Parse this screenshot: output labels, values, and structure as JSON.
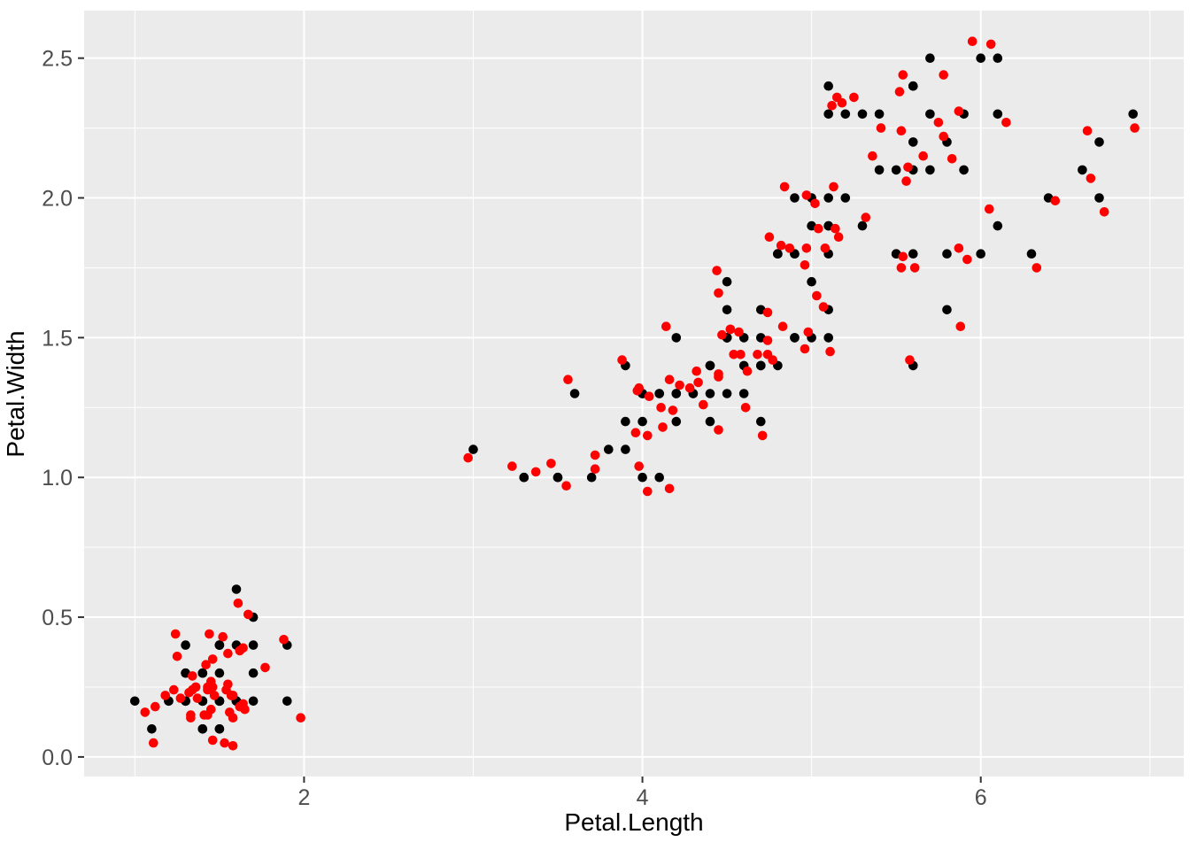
{
  "chart_data": {
    "type": "scatter",
    "title": "",
    "xlabel": "Petal.Length",
    "ylabel": "Petal.Width",
    "xlim": [
      0.7,
      7.2
    ],
    "ylim": [
      -0.07,
      2.67
    ],
    "x_ticks": [
      2,
      4,
      6
    ],
    "x_tick_labels": [
      "2",
      "4",
      "6"
    ],
    "x_minor_ticks": [
      1,
      3,
      5,
      7
    ],
    "y_ticks": [
      0,
      0.5,
      1,
      1.5,
      2,
      2.5
    ],
    "y_tick_labels": [
      "0.0",
      "0.5",
      "1.0",
      "1.5",
      "2.0",
      "2.5"
    ],
    "y_minor_ticks": [
      0.25,
      0.75,
      1.25,
      1.75,
      2.25
    ],
    "grid": true,
    "legend_position": "none",
    "panel_background": "#EBEBEB",
    "grid_color": "#FFFFFF",
    "tick_label_color": "#4D4D4D",
    "tick_mark_color": "#333333",
    "point_radius": 5.3,
    "series": [
      {
        "name": "black-points",
        "color": "#000000",
        "points": [
          [
            1.4,
            0.2
          ],
          [
            1.4,
            0.2
          ],
          [
            1.3,
            0.2
          ],
          [
            1.5,
            0.2
          ],
          [
            1.4,
            0.2
          ],
          [
            1.7,
            0.4
          ],
          [
            1.4,
            0.3
          ],
          [
            1.5,
            0.2
          ],
          [
            1.4,
            0.2
          ],
          [
            1.5,
            0.1
          ],
          [
            1.5,
            0.2
          ],
          [
            1.6,
            0.2
          ],
          [
            1.4,
            0.1
          ],
          [
            1.1,
            0.1
          ],
          [
            1.2,
            0.2
          ],
          [
            1.5,
            0.4
          ],
          [
            1.3,
            0.4
          ],
          [
            1.4,
            0.3
          ],
          [
            1.7,
            0.3
          ],
          [
            1.5,
            0.3
          ],
          [
            1.7,
            0.2
          ],
          [
            1.5,
            0.4
          ],
          [
            1.0,
            0.2
          ],
          [
            1.7,
            0.5
          ],
          [
            1.9,
            0.2
          ],
          [
            1.6,
            0.2
          ],
          [
            1.6,
            0.4
          ],
          [
            1.5,
            0.2
          ],
          [
            1.4,
            0.2
          ],
          [
            1.6,
            0.2
          ],
          [
            1.6,
            0.2
          ],
          [
            1.5,
            0.4
          ],
          [
            1.5,
            0.1
          ],
          [
            1.4,
            0.2
          ],
          [
            1.5,
            0.2
          ],
          [
            1.2,
            0.2
          ],
          [
            1.3,
            0.2
          ],
          [
            1.4,
            0.1
          ],
          [
            1.3,
            0.2
          ],
          [
            1.5,
            0.2
          ],
          [
            1.3,
            0.3
          ],
          [
            1.3,
            0.3
          ],
          [
            1.3,
            0.2
          ],
          [
            1.6,
            0.6
          ],
          [
            1.9,
            0.4
          ],
          [
            1.4,
            0.3
          ],
          [
            1.6,
            0.2
          ],
          [
            1.4,
            0.2
          ],
          [
            1.5,
            0.2
          ],
          [
            1.4,
            0.2
          ],
          [
            4.7,
            1.4
          ],
          [
            4.5,
            1.5
          ],
          [
            4.9,
            1.5
          ],
          [
            4.0,
            1.3
          ],
          [
            4.6,
            1.5
          ],
          [
            4.5,
            1.3
          ],
          [
            4.7,
            1.6
          ],
          [
            3.3,
            1.0
          ],
          [
            4.6,
            1.3
          ],
          [
            3.9,
            1.4
          ],
          [
            3.5,
            1.0
          ],
          [
            4.2,
            1.5
          ],
          [
            4.0,
            1.0
          ],
          [
            4.7,
            1.4
          ],
          [
            3.6,
            1.3
          ],
          [
            4.4,
            1.4
          ],
          [
            4.5,
            1.5
          ],
          [
            4.1,
            1.0
          ],
          [
            4.5,
            1.5
          ],
          [
            3.9,
            1.1
          ],
          [
            4.8,
            1.8
          ],
          [
            4.0,
            1.3
          ],
          [
            4.9,
            1.5
          ],
          [
            4.7,
            1.2
          ],
          [
            4.3,
            1.3
          ],
          [
            4.4,
            1.4
          ],
          [
            4.8,
            1.4
          ],
          [
            5.0,
            1.7
          ],
          [
            4.5,
            1.5
          ],
          [
            3.5,
            1.0
          ],
          [
            3.8,
            1.1
          ],
          [
            3.7,
            1.0
          ],
          [
            3.9,
            1.2
          ],
          [
            5.1,
            1.6
          ],
          [
            4.5,
            1.5
          ],
          [
            4.5,
            1.6
          ],
          [
            4.7,
            1.5
          ],
          [
            4.4,
            1.3
          ],
          [
            4.1,
            1.3
          ],
          [
            4.0,
            1.3
          ],
          [
            4.4,
            1.2
          ],
          [
            4.6,
            1.4
          ],
          [
            4.0,
            1.2
          ],
          [
            3.3,
            1.0
          ],
          [
            4.2,
            1.3
          ],
          [
            4.2,
            1.2
          ],
          [
            4.2,
            1.3
          ],
          [
            4.3,
            1.3
          ],
          [
            3.0,
            1.1
          ],
          [
            4.1,
            1.3
          ],
          [
            6.0,
            2.5
          ],
          [
            5.1,
            1.9
          ],
          [
            5.9,
            2.1
          ],
          [
            5.6,
            1.8
          ],
          [
            5.8,
            2.2
          ],
          [
            6.6,
            2.1
          ],
          [
            4.5,
            1.7
          ],
          [
            6.3,
            1.8
          ],
          [
            5.8,
            1.8
          ],
          [
            6.1,
            2.5
          ],
          [
            5.1,
            2.0
          ],
          [
            5.3,
            1.9
          ],
          [
            5.5,
            2.1
          ],
          [
            5.0,
            2.0
          ],
          [
            5.1,
            2.4
          ],
          [
            5.3,
            2.3
          ],
          [
            5.5,
            1.8
          ],
          [
            6.7,
            2.2
          ],
          [
            6.9,
            2.3
          ],
          [
            5.0,
            1.5
          ],
          [
            5.7,
            2.3
          ],
          [
            4.9,
            2.0
          ],
          [
            6.7,
            2.0
          ],
          [
            4.9,
            1.8
          ],
          [
            5.7,
            2.1
          ],
          [
            6.0,
            1.8
          ],
          [
            4.8,
            1.8
          ],
          [
            4.9,
            1.8
          ],
          [
            5.6,
            2.1
          ],
          [
            5.8,
            1.6
          ],
          [
            6.1,
            1.9
          ],
          [
            6.4,
            2.0
          ],
          [
            5.6,
            2.2
          ],
          [
            5.1,
            1.5
          ],
          [
            5.6,
            1.4
          ],
          [
            6.1,
            2.3
          ],
          [
            5.6,
            2.4
          ],
          [
            5.5,
            1.8
          ],
          [
            4.8,
            1.8
          ],
          [
            5.4,
            2.1
          ],
          [
            5.6,
            2.4
          ],
          [
            5.1,
            2.3
          ],
          [
            5.1,
            1.9
          ],
          [
            5.9,
            2.3
          ],
          [
            5.7,
            2.5
          ],
          [
            5.2,
            2.3
          ],
          [
            5.0,
            1.9
          ],
          [
            5.2,
            2.0
          ],
          [
            5.4,
            2.3
          ],
          [
            5.1,
            1.8
          ]
        ]
      },
      {
        "name": "red-points",
        "color": "#FF0000",
        "points": [
          [
            1.45,
            0.17
          ],
          [
            1.34,
            0.24
          ],
          [
            1.33,
            0.15
          ],
          [
            1.57,
            0.22
          ],
          [
            1.36,
            0.25
          ],
          [
            1.62,
            0.38
          ],
          [
            1.42,
            0.33
          ],
          [
            1.56,
            0.16
          ],
          [
            1.37,
            0.21
          ],
          [
            1.58,
            0.04
          ],
          [
            1.45,
            0.26
          ],
          [
            1.64,
            0.19
          ],
          [
            1.33,
            0.14
          ],
          [
            1.11,
            0.05
          ],
          [
            1.18,
            0.22
          ],
          [
            1.55,
            0.37
          ],
          [
            1.24,
            0.44
          ],
          [
            1.43,
            0.25
          ],
          [
            1.77,
            0.32
          ],
          [
            1.46,
            0.35
          ],
          [
            1.62,
            0.18
          ],
          [
            1.52,
            0.43
          ],
          [
            1.06,
            0.16
          ],
          [
            1.67,
            0.51
          ],
          [
            1.98,
            0.14
          ],
          [
            1.55,
            0.26
          ],
          [
            1.64,
            0.39
          ],
          [
            1.43,
            0.24
          ],
          [
            1.41,
            0.15
          ],
          [
            1.58,
            0.22
          ],
          [
            1.65,
            0.17
          ],
          [
            1.44,
            0.44
          ],
          [
            1.53,
            0.05
          ],
          [
            1.47,
            0.22
          ],
          [
            1.46,
            0.25
          ],
          [
            1.12,
            0.18
          ],
          [
            1.32,
            0.23
          ],
          [
            1.46,
            0.06
          ],
          [
            1.27,
            0.21
          ],
          [
            1.58,
            0.14
          ],
          [
            1.25,
            0.36
          ],
          [
            1.34,
            0.29
          ],
          [
            1.23,
            0.24
          ],
          [
            1.61,
            0.55
          ],
          [
            1.88,
            0.42
          ],
          [
            1.45,
            0.27
          ],
          [
            1.54,
            0.24
          ],
          [
            1.43,
            0.15
          ],
          [
            1.57,
            0.22
          ],
          [
            1.36,
            0.25
          ],
          [
            4.62,
            1.38
          ],
          [
            4.52,
            1.53
          ],
          [
            4.96,
            1.46
          ],
          [
            3.97,
            1.31
          ],
          [
            4.68,
            1.44
          ],
          [
            4.45,
            1.36
          ],
          [
            4.74,
            1.59
          ],
          [
            3.23,
            1.04
          ],
          [
            4.61,
            1.25
          ],
          [
            3.88,
            1.42
          ],
          [
            3.55,
            0.97
          ],
          [
            4.14,
            1.54
          ],
          [
            4.03,
            0.95
          ],
          [
            4.77,
            1.42
          ],
          [
            3.56,
            1.35
          ],
          [
            4.32,
            1.38
          ],
          [
            4.52,
            1.53
          ],
          [
            4.16,
            0.96
          ],
          [
            4.47,
            1.51
          ],
          [
            3.98,
            1.04
          ],
          [
            4.75,
            1.86
          ],
          [
            4.04,
            1.29
          ],
          [
            4.83,
            1.54
          ],
          [
            4.71,
            1.15
          ],
          [
            4.28,
            1.32
          ],
          [
            4.45,
            1.37
          ],
          [
            4.74,
            1.44
          ],
          [
            5.03,
            1.65
          ],
          [
            4.57,
            1.52
          ],
          [
            3.46,
            1.05
          ],
          [
            3.72,
            1.08
          ],
          [
            3.72,
            1.03
          ],
          [
            3.96,
            1.16
          ],
          [
            5.07,
            1.61
          ],
          [
            4.58,
            1.44
          ],
          [
            4.45,
            1.66
          ],
          [
            4.74,
            1.49
          ],
          [
            4.33,
            1.34
          ],
          [
            4.11,
            1.25
          ],
          [
            3.98,
            1.32
          ],
          [
            4.45,
            1.17
          ],
          [
            4.54,
            1.44
          ],
          [
            4.03,
            1.15
          ],
          [
            3.37,
            1.02
          ],
          [
            4.16,
            1.35
          ],
          [
            4.12,
            1.18
          ],
          [
            4.22,
            1.33
          ],
          [
            4.36,
            1.26
          ],
          [
            2.97,
            1.07
          ],
          [
            4.18,
            1.24
          ],
          [
            5.95,
            2.56
          ],
          [
            5.14,
            1.89
          ],
          [
            5.83,
            2.14
          ],
          [
            5.61,
            1.75
          ],
          [
            5.78,
            2.22
          ],
          [
            6.65,
            2.07
          ],
          [
            4.44,
            1.74
          ],
          [
            6.33,
            1.75
          ],
          [
            5.87,
            1.82
          ],
          [
            6.06,
            2.55
          ],
          [
            5.02,
            1.98
          ],
          [
            5.32,
            1.93
          ],
          [
            5.56,
            2.06
          ],
          [
            4.97,
            2.01
          ],
          [
            5.18,
            2.34
          ],
          [
            5.25,
            2.36
          ],
          [
            5.54,
            1.79
          ],
          [
            6.63,
            2.24
          ],
          [
            6.91,
            2.25
          ],
          [
            4.98,
            1.52
          ],
          [
            5.75,
            2.27
          ],
          [
            4.84,
            2.04
          ],
          [
            6.73,
            1.95
          ],
          [
            4.97,
            1.82
          ],
          [
            5.66,
            2.15
          ],
          [
            5.92,
            1.78
          ],
          [
            4.82,
            1.83
          ],
          [
            4.96,
            1.76
          ],
          [
            5.57,
            2.11
          ],
          [
            5.88,
            1.54
          ],
          [
            6.05,
            1.96
          ],
          [
            6.44,
            1.99
          ],
          [
            5.53,
            2.24
          ],
          [
            5.11,
            1.45
          ],
          [
            5.58,
            1.42
          ],
          [
            6.15,
            2.27
          ],
          [
            5.54,
            2.44
          ],
          [
            5.53,
            1.75
          ],
          [
            4.87,
            1.82
          ],
          [
            5.36,
            2.15
          ],
          [
            5.52,
            2.38
          ],
          [
            5.12,
            2.33
          ],
          [
            5.16,
            1.86
          ],
          [
            5.87,
            2.31
          ],
          [
            5.78,
            2.44
          ],
          [
            5.15,
            2.36
          ],
          [
            5.04,
            1.89
          ],
          [
            5.13,
            2.04
          ],
          [
            5.41,
            2.25
          ],
          [
            5.08,
            1.82
          ]
        ]
      }
    ]
  }
}
